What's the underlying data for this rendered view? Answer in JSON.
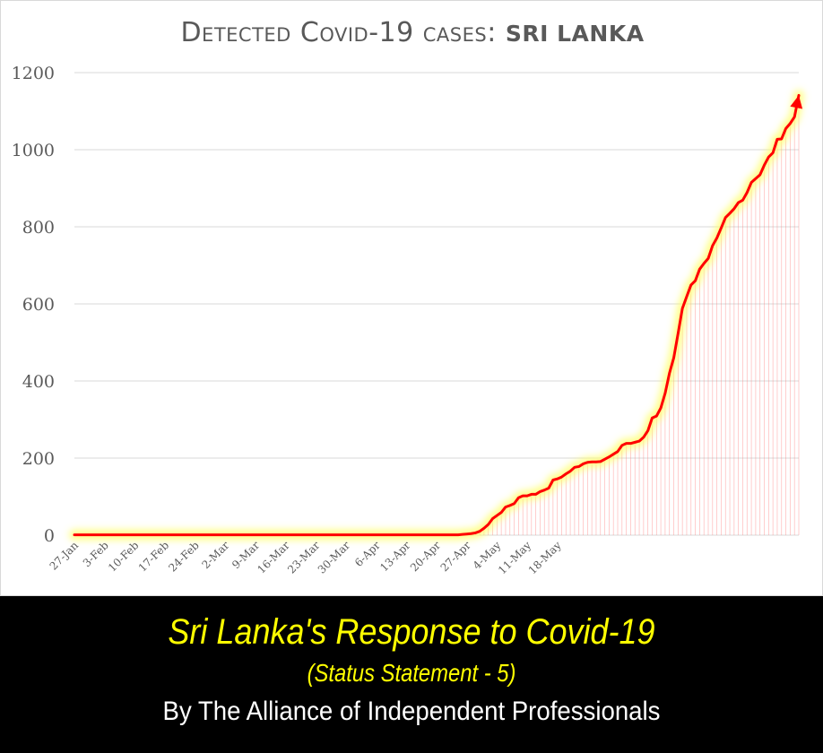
{
  "title": {
    "main": "Detected Covid-19 cases: ",
    "country": "SRI LANKA"
  },
  "banner": {
    "title": "Sri Lanka's Response to Covid-19",
    "subtitle": "(Status Statement - 5)",
    "author": "By The Alliance of Independent Professionals"
  },
  "chart_data": {
    "type": "line",
    "title": "Detected Covid-19 cases: SRI LANKA",
    "xlabel": "",
    "ylabel": "",
    "ylim": [
      0,
      1200
    ],
    "yticks": [
      0,
      200,
      400,
      600,
      800,
      1000,
      1200
    ],
    "xtick_labels": [
      "27-Jan",
      "3-Feb",
      "10-Feb",
      "17-Feb",
      "24-Feb",
      "2-Mar",
      "9-Mar",
      "16-Mar",
      "23-Mar",
      "30-Mar",
      "6-Apr",
      "13-Apr",
      "20-Apr",
      "27-Apr",
      "4-May",
      "11-May",
      "18-May"
    ],
    "x_start": "27-Jan",
    "x_end": "25-May",
    "grid": true,
    "line_color": "#ff0000",
    "glow_color": "#ffff66",
    "series": [
      {
        "values": [
          1,
          1,
          1,
          1,
          1,
          1,
          1,
          1,
          1,
          1,
          1,
          1,
          1,
          1,
          1,
          1,
          1,
          1,
          1,
          1,
          1,
          1,
          1,
          1,
          1,
          1,
          1,
          1,
          1,
          1,
          1,
          1,
          1,
          1,
          1,
          1,
          1,
          1,
          1,
          1,
          1,
          1,
          1,
          1,
          1,
          1,
          1,
          1,
          1,
          1,
          1,
          1,
          1,
          1,
          1,
          1,
          1,
          1,
          1,
          1,
          1,
          1,
          1,
          1,
          1,
          1,
          1,
          1,
          1,
          1,
          1,
          1,
          1,
          1,
          1,
          1,
          1,
          1,
          1,
          1,
          1,
          1,
          1,
          1,
          1,
          1,
          1,
          1,
          1,
          1,
          2,
          3,
          4,
          6,
          10,
          18,
          28,
          43,
          51,
          59,
          73,
          77,
          82,
          97,
          102,
          102,
          106,
          106,
          113,
          117,
          122,
          143,
          146,
          151,
          159,
          166,
          176,
          178,
          185,
          189,
          190,
          190,
          191,
          197,
          203,
          210,
          217,
          233,
          238,
          238,
          241,
          244,
          254,
          271,
          304,
          309,
          330,
          368,
          420,
          460,
          523,
          588,
          619,
          649,
          660,
          690,
          705,
          718,
          751,
          771,
          797,
          824,
          835,
          847,
          863,
          869,
          889,
          915,
          925,
          935,
          960,
          981,
          992,
          1027,
          1028,
          1055,
          1068,
          1085,
          1141
        ]
      }
    ]
  }
}
